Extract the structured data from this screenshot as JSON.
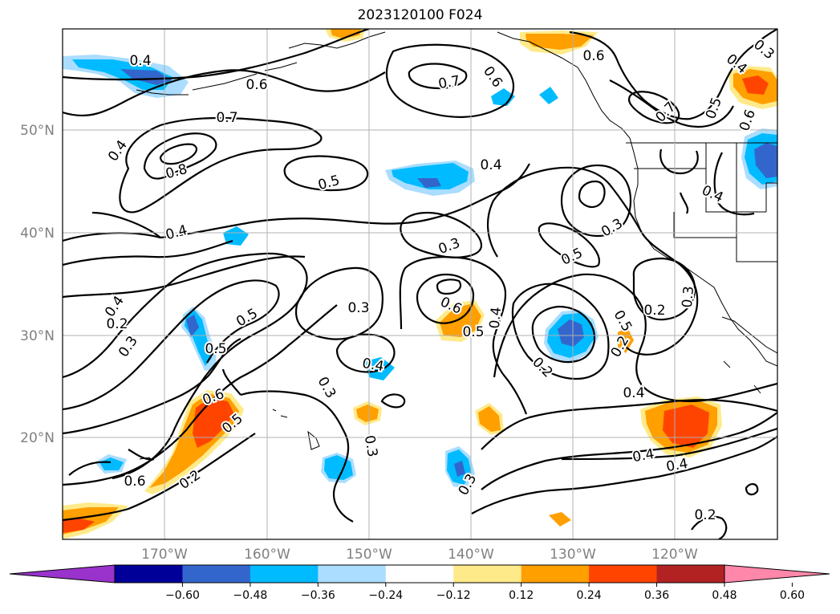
{
  "title": "2023120100 F024",
  "map": {
    "lat_labels": [
      "50°N",
      "40°N",
      "30°N",
      "20°N"
    ],
    "lon_labels": [
      "170°W",
      "160°W",
      "150°W",
      "140°W",
      "130°W",
      "120°W"
    ],
    "contour_labels": [
      "0.4",
      "0.6",
      "0.7",
      "0.6",
      "0.6",
      "0.4",
      "0.3",
      "0.5",
      "0.6",
      "0.7",
      "0.4",
      "0.5",
      "0.4",
      "0.4",
      "0.4",
      "0.8",
      "0.7",
      "0.4",
      "0.5",
      "0.3",
      "0.3",
      "0.5",
      "0.3",
      "0.2",
      "0.5",
      "0.3",
      "0.6",
      "0.5",
      "0.4",
      "0.3",
      "0.4",
      "0.2",
      "0.3",
      "0.5",
      "0.6",
      "0.2",
      "0.5",
      "0.4",
      "0.6",
      "0.4",
      "0.2",
      "0.3",
      "0.3",
      "0.4",
      "0.2",
      "0.2"
    ],
    "colors": {
      "neg_strong": "#9933cc",
      "neg_060": "#000099",
      "neg_048": "#3366cc",
      "neg_036": "#00bbff",
      "neg_024": "#aaddff",
      "pos_024": "#ffea8a",
      "pos_036": "#ff9f00",
      "pos_048": "#ff4400",
      "pos_060": "#b22222",
      "pos_strong": "#ff88aa"
    }
  },
  "colorbar": {
    "ticks": [
      "−0.60",
      "−0.48",
      "−0.36",
      "−0.24",
      "−0.12",
      "0.12",
      "0.24",
      "0.36",
      "0.48",
      "0.60"
    ],
    "colors": [
      "#9933cc",
      "#000099",
      "#3366cc",
      "#00bbff",
      "#aaddff",
      "#ffffff",
      "#ffea8a",
      "#ff9f00",
      "#ff4400",
      "#b22222",
      "#ff88aa"
    ]
  }
}
